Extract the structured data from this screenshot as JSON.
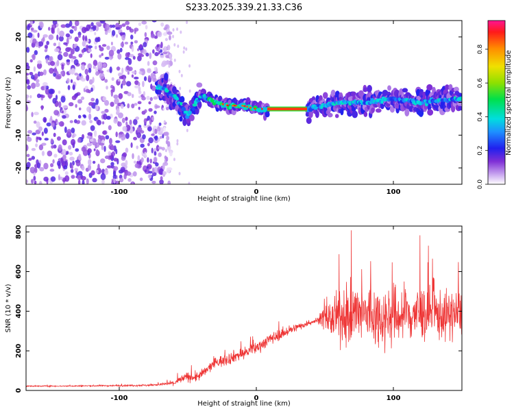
{
  "figure": {
    "title": "S233.2025.339.21.33.C36"
  },
  "chart_data": [
    {
      "type": "heatmap",
      "xlabel": "Height of straight line (km)",
      "ylabel": "Frequency (Hz)",
      "xlim": [
        -168,
        150
      ],
      "ylim": [
        -25,
        25
      ],
      "xticks": [
        -100,
        0,
        100
      ],
      "yticks": [
        -20,
        -10,
        0,
        10,
        20
      ],
      "colorbar": {
        "label": "Normalized spectral amplitude",
        "range": [
          0,
          0.97
        ],
        "ticks": [
          0.0,
          0.2,
          0.4,
          0.6,
          0.8
        ]
      },
      "ridge": {
        "description_points_x": [
          -70,
          -60,
          -50,
          -40,
          -30,
          -20,
          -10,
          0,
          8,
          20,
          37,
          60,
          80,
          100,
          120,
          140,
          150
        ],
        "frequency_y": [
          5,
          2,
          -4,
          2,
          0,
          -1,
          -1,
          -2,
          -2,
          -2,
          -2,
          0,
          0,
          1,
          0,
          1,
          1
        ],
        "strongest_segment_x": [
          8,
          37
        ]
      }
    },
    {
      "type": "line",
      "xlabel": "Height of straight line (km)",
      "ylabel": "SNR (10 * v/v)",
      "xlim": [
        -168,
        150
      ],
      "ylim": [
        0,
        830
      ],
      "xticks": [
        -100,
        0,
        100
      ],
      "yticks": [
        0,
        200,
        400,
        600,
        800
      ],
      "series": [
        {
          "name": "SNR",
          "color": "#ee3333",
          "x": [
            -168,
            -140,
            -110,
            -80,
            -70,
            -60,
            -55,
            -50,
            -45,
            -40,
            -35,
            -30,
            -25,
            -20,
            -15,
            -10,
            -5,
            0,
            10,
            20,
            30,
            40,
            45,
            50,
            55,
            60,
            70,
            80,
            90,
            100,
            110,
            120,
            130,
            140,
            150
          ],
          "y": [
            22,
            22,
            24,
            26,
            30,
            38,
            55,
            70,
            65,
            80,
            110,
            140,
            150,
            160,
            175,
            185,
            200,
            215,
            260,
            290,
            320,
            345,
            355,
            365,
            360,
            370,
            380,
            385,
            370,
            375,
            380,
            390,
            385,
            375,
            390
          ],
          "noise_amplitude": [
            3,
            3,
            4,
            5,
            6,
            12,
            20,
            25,
            25,
            25,
            25,
            28,
            30,
            30,
            30,
            30,
            30,
            30,
            30,
            25,
            20,
            12,
            15,
            60,
            100,
            120,
            150,
            160,
            150,
            150,
            150,
            140,
            130,
            120,
            120
          ]
        }
      ]
    }
  ]
}
